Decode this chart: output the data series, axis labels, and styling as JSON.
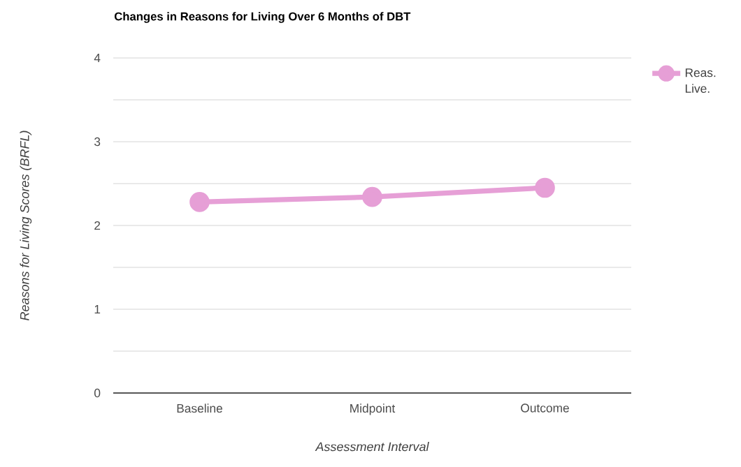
{
  "chart_data": {
    "type": "line",
    "title": "Changes in Reasons for Living Over 6 Months of DBT",
    "xlabel": "Assessment Interval",
    "ylabel": "Reasons for Living Scores (BRFL)",
    "categories": [
      "Baseline",
      "Midpoint",
      "Outcome"
    ],
    "series": [
      {
        "name": "Reas. Live.",
        "color": "#e69fd6",
        "values": [
          2.28,
          2.34,
          2.45
        ]
      }
    ],
    "ylim": [
      0,
      4
    ],
    "yticks": [
      0,
      {
        "value": 0.5,
        "label": null
      },
      1,
      {
        "value": 1.5,
        "label": null
      },
      2,
      {
        "value": 2.5,
        "label": null
      },
      3,
      {
        "value": 3.5,
        "label": null
      },
      4
    ],
    "grid": "y",
    "legend": "top right",
    "marker": "circle",
    "line_style": "solid"
  }
}
